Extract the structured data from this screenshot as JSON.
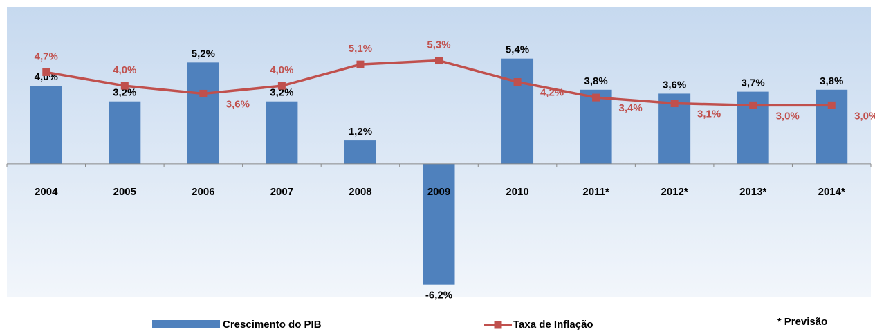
{
  "chart_data": {
    "type": "bar_line",
    "categories": [
      "2004",
      "2005",
      "2006",
      "2007",
      "2008",
      "2009",
      "2010",
      "2011*",
      "2012*",
      "2013*",
      "2014*"
    ],
    "series": [
      {
        "name": "Crescimento do PIB",
        "type": "bar",
        "color": "#4f81bd",
        "values": [
          4.0,
          3.2,
          5.2,
          3.2,
          1.2,
          -6.2,
          5.4,
          3.8,
          3.6,
          3.7,
          3.8
        ],
        "value_labels": [
          "4,0%",
          "3,2%",
          "5,2%",
          "3,2%",
          "1,2%",
          "-6,2%",
          "5,4%",
          "3,8%",
          "3,6%",
          "3,7%",
          "3,8%"
        ]
      },
      {
        "name": "Taxa de Inflação",
        "type": "line",
        "color": "#c0504d",
        "values": [
          4.7,
          4.0,
          3.6,
          4.0,
          5.1,
          5.3,
          4.2,
          3.4,
          3.1,
          3.0,
          3.0
        ],
        "value_labels": [
          "4,7%",
          "4,0%",
          "3,6%",
          "4,0%",
          "5,1%",
          "5,3%",
          "4,2%",
          "3,4%",
          "3,1%",
          "3,0%",
          "3,0%"
        ]
      }
    ],
    "ylim": [
      -6.85,
      8.05
    ],
    "annotation": "* Previsão"
  }
}
